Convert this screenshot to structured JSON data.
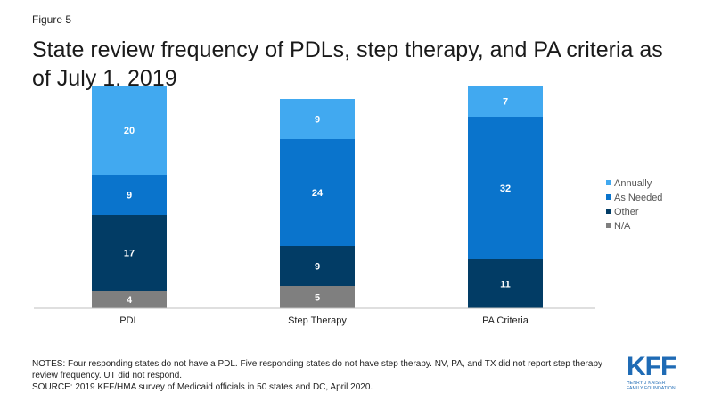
{
  "figure_label": "Figure 5",
  "title": "State review frequency of PDLs, step therapy, and PA criteria as of July 1, 2019",
  "notes": "NOTES: Four responding states do not have a PDL. Five responding states do not have step therapy. NV, PA, and TX did not report step therapy review frequency. UT did not respond.",
  "source": "SOURCE: 2019 KFF/HMA survey of Medicaid officials in 50 states and DC, April 2020.",
  "logo": {
    "text": "KFF",
    "org_line1": "HENRY J KAISER",
    "org_line2": "FAMILY FOUNDATION"
  },
  "colors": {
    "annually": "#41a9f0",
    "as_needed": "#0a74cc",
    "other": "#023c65",
    "na": "#7f7f7f"
  },
  "chart_data": {
    "type": "bar",
    "stacked": true,
    "categories": [
      "PDL",
      "Step Therapy",
      "PA Criteria"
    ],
    "series": [
      {
        "name": "N/A",
        "values": [
          4,
          5,
          0
        ],
        "color": "#7f7f7f"
      },
      {
        "name": "Other",
        "values": [
          17,
          9,
          11
        ],
        "color": "#023c65"
      },
      {
        "name": "As Needed",
        "values": [
          9,
          24,
          32
        ],
        "color": "#0a74cc"
      },
      {
        "name": "Annually",
        "values": [
          20,
          9,
          7
        ],
        "color": "#41a9f0"
      }
    ],
    "legend_order": [
      "Annually",
      "As Needed",
      "Other",
      "N/A"
    ],
    "legend_position": "right",
    "ylim": [
      0,
      50
    ],
    "grid": false,
    "xlabel": "",
    "ylabel": ""
  }
}
